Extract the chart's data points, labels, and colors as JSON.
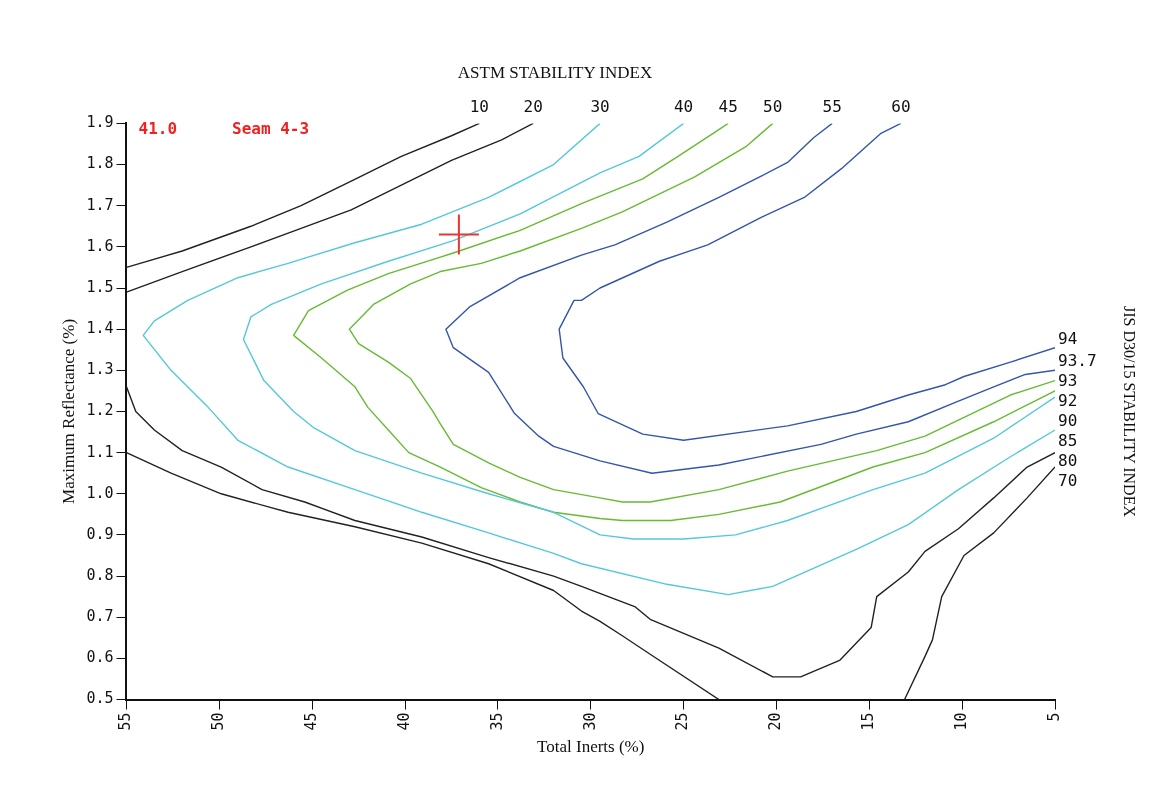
{
  "chart_data": {
    "type": "line",
    "title": "ASTM STABILITY INDEX",
    "xlabel": "Total Inerts (%)",
    "ylabel": "Maximum Reflectance (%)",
    "y2label": "JIS D30/15 STABILITY INDEX",
    "xlim": [
      55,
      5
    ],
    "xticks": [
      55,
      50,
      45,
      40,
      35,
      30,
      25,
      20,
      15,
      10,
      5
    ],
    "ylim": [
      0.5,
      1.9
    ],
    "yticks": [
      0.5,
      0.6,
      0.7,
      0.8,
      0.9,
      {
        "value": 1,
        "label": "1.0"
      },
      1.1,
      1.2,
      1.3,
      1.4,
      1.5,
      1.6,
      1.7,
      1.8,
      1.9
    ],
    "grid": false,
    "legend": false,
    "line_style": "solid",
    "marker": "none",
    "series": [
      {
        "color": "#222222",
        "x": [
          55,
          52,
          48.3,
          45.6,
          42.9,
          40.2,
          37.5,
          36
        ],
        "values": [
          1.55,
          1.59,
          1.65,
          1.7,
          1.76,
          1.82,
          1.87,
          1.9
        ]
      },
      {
        "color": "#222222",
        "x": [
          55,
          52,
          48.3,
          45.6,
          42.9,
          40.2,
          37.5,
          34.8,
          33.1
        ],
        "values": [
          1.49,
          1.54,
          1.6,
          1.645,
          1.69,
          1.75,
          1.81,
          1.86,
          1.9
        ]
      },
      {
        "color": "#55c8d8",
        "x": [
          29.5,
          32,
          35.5,
          39.1,
          42.7,
          46.3,
          49,
          51.7,
          53.5,
          54.1,
          52.6,
          50.6,
          49,
          46.3,
          42.7,
          39.1,
          35.5,
          32,
          30.5,
          25.9,
          22.6,
          20.2,
          15.7,
          12.9,
          10.2,
          7.4,
          5
        ],
        "values": [
          1.9,
          1.8,
          1.72,
          1.655,
          1.61,
          1.56,
          1.525,
          1.47,
          1.42,
          1.385,
          1.3,
          1.21,
          1.13,
          1.065,
          1.01,
          0.955,
          0.905,
          0.855,
          0.83,
          0.78,
          0.755,
          0.775,
          0.865,
          0.925,
          1.01,
          1.09,
          1.155
        ]
      },
      {
        "color": "#55c8d8",
        "x": [
          25,
          27.4,
          29.5,
          33.8,
          37.4,
          40.9,
          44.5,
          47.2,
          48.3,
          48.7,
          47.6,
          46,
          44.9,
          42.7,
          39.1,
          35.5,
          32,
          29.5,
          27.7,
          25,
          22.2,
          19.4,
          14.8,
          12,
          8.3,
          5
        ],
        "values": [
          1.9,
          1.82,
          1.78,
          1.68,
          1.615,
          1.565,
          1.51,
          1.46,
          1.43,
          1.375,
          1.275,
          1.2,
          1.16,
          1.105,
          1.05,
          1,
          0.955,
          0.9,
          0.89,
          0.89,
          0.9,
          0.935,
          1.01,
          1.05,
          1.135,
          1.235
        ]
      },
      {
        "color": "#66bb33",
        "x": [
          22.6,
          23.1,
          25.3,
          27.2,
          30.5,
          33.8,
          37.4,
          40.9,
          43.1,
          45.2,
          46,
          44.5,
          42.7,
          42,
          40.9,
          39.8,
          38.1,
          35.9,
          33.8,
          32,
          29.5,
          28.3,
          25.7,
          23.1,
          19.8,
          14.8,
          12,
          8.3,
          5
        ],
        "values": [
          1.9,
          1.885,
          1.82,
          1.765,
          1.705,
          1.64,
          1.585,
          1.535,
          1.495,
          1.445,
          1.385,
          1.33,
          1.26,
          1.21,
          1.155,
          1.1,
          1.065,
          1.015,
          0.98,
          0.955,
          0.94,
          0.935,
          0.935,
          0.95,
          0.98,
          1.065,
          1.1,
          1.175,
          1.25
        ]
      },
      {
        "color": "#66bb33",
        "x": [
          20.2,
          21.6,
          24.4,
          28.3,
          30.5,
          33.8,
          35.9,
          38.1,
          39.7,
          41.7,
          43,
          42.5,
          40.9,
          39.7,
          38.5,
          38.1,
          37.4,
          35.5,
          33.8,
          32,
          29.5,
          28.3,
          26.8,
          23.1,
          19.4,
          14.6,
          12,
          7.4,
          5
        ],
        "values": [
          1.9,
          1.845,
          1.77,
          1.685,
          1.645,
          1.59,
          1.56,
          1.54,
          1.51,
          1.46,
          1.4,
          1.365,
          1.32,
          1.28,
          1.2,
          1.17,
          1.12,
          1.075,
          1.04,
          1.01,
          0.99,
          0.98,
          0.98,
          1.01,
          1.055,
          1.105,
          1.14,
          1.24,
          1.275
        ]
      },
      {
        "color": "#3355aa",
        "x": [
          17,
          18,
          19.4,
          20.9,
          23.1,
          25.9,
          28.7,
          30.5,
          33.8,
          36.5,
          37.8,
          37.4,
          35.5,
          34.1,
          32.8,
          32,
          29.5,
          26.7,
          23.1,
          17.6,
          15.7,
          12.9,
          10.2,
          8.3,
          6.6,
          5
        ],
        "values": [
          1.9,
          1.865,
          1.805,
          1.77,
          1.72,
          1.66,
          1.605,
          1.58,
          1.525,
          1.455,
          1.4,
          1.355,
          1.295,
          1.195,
          1.14,
          1.115,
          1.08,
          1.05,
          1.07,
          1.12,
          1.145,
          1.175,
          1.225,
          1.26,
          1.29,
          1.3
        ]
      },
      {
        "color": "#3355aa",
        "x": [
          13.3,
          14.4,
          16.5,
          18.5,
          20.9,
          23.7,
          26.3,
          29.5,
          30.5,
          30.9,
          31.7,
          31.5,
          30.4,
          29.6,
          27.2,
          25,
          19.4,
          15.7,
          12.9,
          10.9,
          9.9,
          7.4,
          5
        ],
        "values": [
          1.9,
          1.875,
          1.79,
          1.72,
          1.67,
          1.605,
          1.565,
          1.5,
          1.47,
          1.47,
          1.4,
          1.33,
          1.26,
          1.195,
          1.145,
          1.13,
          1.165,
          1.2,
          1.24,
          1.265,
          1.285,
          1.32,
          1.355
        ]
      },
      {
        "color": "#222222",
        "x": [
          55,
          54.5,
          53.5,
          52,
          49.9,
          47.7,
          45.4,
          42.7,
          39.1,
          35.5,
          32,
          30.5,
          27.6,
          26.8,
          23.1,
          20.2,
          18.7,
          16.6,
          14.9,
          14.6,
          12.9,
          12,
          10.2,
          8.3,
          6.5,
          5
        ],
        "values": [
          1.26,
          1.2,
          1.155,
          1.105,
          1.065,
          1.01,
          0.98,
          0.935,
          0.895,
          0.845,
          0.8,
          0.775,
          0.725,
          0.695,
          0.625,
          0.555,
          0.555,
          0.595,
          0.675,
          0.75,
          0.81,
          0.86,
          0.915,
          0.99,
          1.065,
          1.1
        ]
      },
      {
        "color": "#222222",
        "x": [
          55,
          52.6,
          49.9,
          46.3,
          42.7,
          39.1,
          35.5,
          32,
          30.5,
          29.5,
          28.3,
          26.8,
          23.1
        ],
        "values": [
          1.1,
          1.05,
          1,
          0.955,
          0.92,
          0.88,
          0.83,
          0.765,
          0.715,
          0.69,
          0.655,
          0.61,
          0.5
        ]
      },
      {
        "color": "#222222",
        "x": [
          13.1,
          12,
          11.6,
          11.1,
          9.9,
          8.3,
          6.5,
          5
        ],
        "values": [
          0.5,
          0.605,
          0.645,
          0.75,
          0.85,
          0.905,
          0.99,
          1.065
        ]
      },
      {
        "type": "scatter",
        "marker": "cross",
        "color": "#ee3333",
        "x": [
          37.1
        ],
        "values": [
          1.63
        ]
      }
    ],
    "annotations": [
      "41.0",
      "Seam 4-3",
      {
        "text": "10",
        "x": 36,
        "y": 1.9
      },
      {
        "text": "20",
        "x": 33.1,
        "y": 1.9
      },
      {
        "text": "30",
        "x": 29.5,
        "y": 1.9
      },
      {
        "text": "40",
        "x": 25,
        "y": 1.9
      },
      {
        "text": "45",
        "x": 22.6,
        "y": 1.9
      },
      {
        "text": "50",
        "x": 20.2,
        "y": 1.9
      },
      {
        "text": "55",
        "x": 17,
        "y": 1.9
      },
      {
        "text": "60",
        "x": 13.3,
        "y": 1.9
      },
      {
        "text": "94",
        "x": 5,
        "y": 1.355
      },
      {
        "text": "93.7",
        "x": 5,
        "y": 1.3
      },
      {
        "text": "93",
        "x": 5,
        "y": 1.275
      },
      {
        "text": "92",
        "x": 5,
        "y": 1.25
      },
      {
        "text": "90",
        "x": 5,
        "y": 1.235
      },
      {
        "text": "85",
        "x": 5,
        "y": 1.155
      },
      {
        "text": "80",
        "x": 5,
        "y": 1.1
      },
      {
        "text": "70",
        "x": 5,
        "y": 1.065
      }
    ]
  }
}
